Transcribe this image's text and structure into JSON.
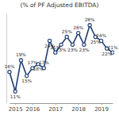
{
  "chart_data": {
    "type": "line",
    "title": "(% of PF Adjusted EBITDA)",
    "categories": [
      null,
      "2015",
      null,
      null,
      "2016",
      null,
      null,
      null,
      "2017",
      null,
      null,
      null,
      "2018",
      null,
      null,
      null,
      "2019",
      null,
      null
    ],
    "values": [
      16,
      11,
      19,
      15,
      17,
      18,
      17,
      24,
      21,
      23,
      25,
      23,
      26,
      23,
      28,
      25,
      24,
      22,
      21
    ],
    "value_labels": [
      "16%",
      "11%",
      "19%",
      "15%",
      "17%",
      "18%",
      "17%",
      "24%",
      "21%",
      "23%",
      "25%",
      "23%",
      "26%",
      "23%",
      "28%",
      "25%",
      "24%",
      "22%",
      "21%"
    ],
    "color": "#1f3d73",
    "marker": "circle",
    "line_style": "solid",
    "ylim": [
      8,
      31
    ],
    "data_labels": true,
    "tick_labels": "x",
    "grid": false
  }
}
